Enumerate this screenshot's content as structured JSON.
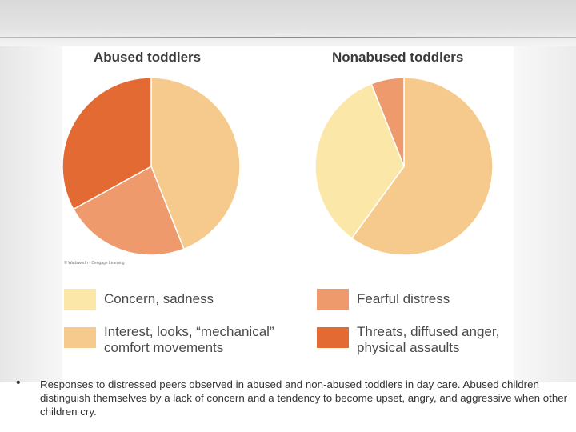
{
  "chart_data": [
    {
      "type": "pie",
      "title": "Abused toddlers",
      "slices": [
        {
          "label": "Interest, looks, “mechanical” comfort movements",
          "value": 44,
          "color": "#f6ca8c"
        },
        {
          "label": "Fearful distress",
          "value": 23,
          "color": "#ee9a6c"
        },
        {
          "label": "Threats, diffused anger, physical assaults",
          "value": 33,
          "color": "#e46a33"
        }
      ]
    },
    {
      "type": "pie",
      "title": "Nonabused toddlers",
      "slices": [
        {
          "label": "Interest, looks, “mechanical” comfort movements",
          "value": 60,
          "color": "#f6ca8c"
        },
        {
          "label": "Concern, sadness",
          "value": 34,
          "color": "#fbe8a8"
        },
        {
          "label": "Fearful distress",
          "value": 6,
          "color": "#ee9a6c"
        }
      ]
    }
  ],
  "legend": [
    {
      "label_lines": [
        "Concern, sadness"
      ],
      "color": "#fbe8a8"
    },
    {
      "label_lines": [
        "Fearful distress"
      ],
      "color": "#ee9a6c"
    },
    {
      "label_lines": [
        "Interest, looks, “mechanical”",
        "comfort movements"
      ],
      "color": "#f6ca8c"
    },
    {
      "label_lines": [
        "Threats, diffused anger,",
        "physical assaults"
      ],
      "color": "#e46a33"
    }
  ],
  "credit": "© Wadsworth - Cengage Learning",
  "bullet": "•",
  "caption": "Responses to distressed peers observed in abused and non-abused toddlers in day care. Abused children distinguish themselves by a lack of concern and a tendency to become upset, angry, and aggressive when other children cry."
}
